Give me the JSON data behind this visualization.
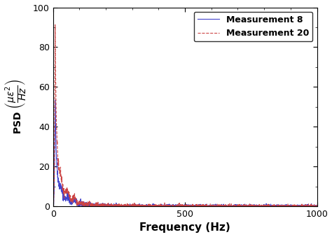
{
  "title": "",
  "xlabel": "Frequency (Hz)",
  "xlim": [
    0,
    1000
  ],
  "ylim": [
    0,
    100
  ],
  "yticks": [
    0,
    20,
    40,
    60,
    80,
    100
  ],
  "xticks": [
    0,
    500,
    1000
  ],
  "line1_label": "Measurement 8",
  "line1_color": "#4444cc",
  "line1_style": "-",
  "line1_linewidth": 0.8,
  "line2_label": "Measurement 20",
  "line2_color": "#cc4444",
  "line2_style": "--",
  "line2_linewidth": 0.8,
  "legend_fontsize": 9,
  "background_color": "#ffffff",
  "n_points": 2000,
  "fs": 1000,
  "peak_amp8": 55,
  "peak_amp20": 90,
  "peak_freq": 8,
  "decay_alpha": 1.6,
  "noise_base": 0.4,
  "noise_low_scale": 1.2
}
